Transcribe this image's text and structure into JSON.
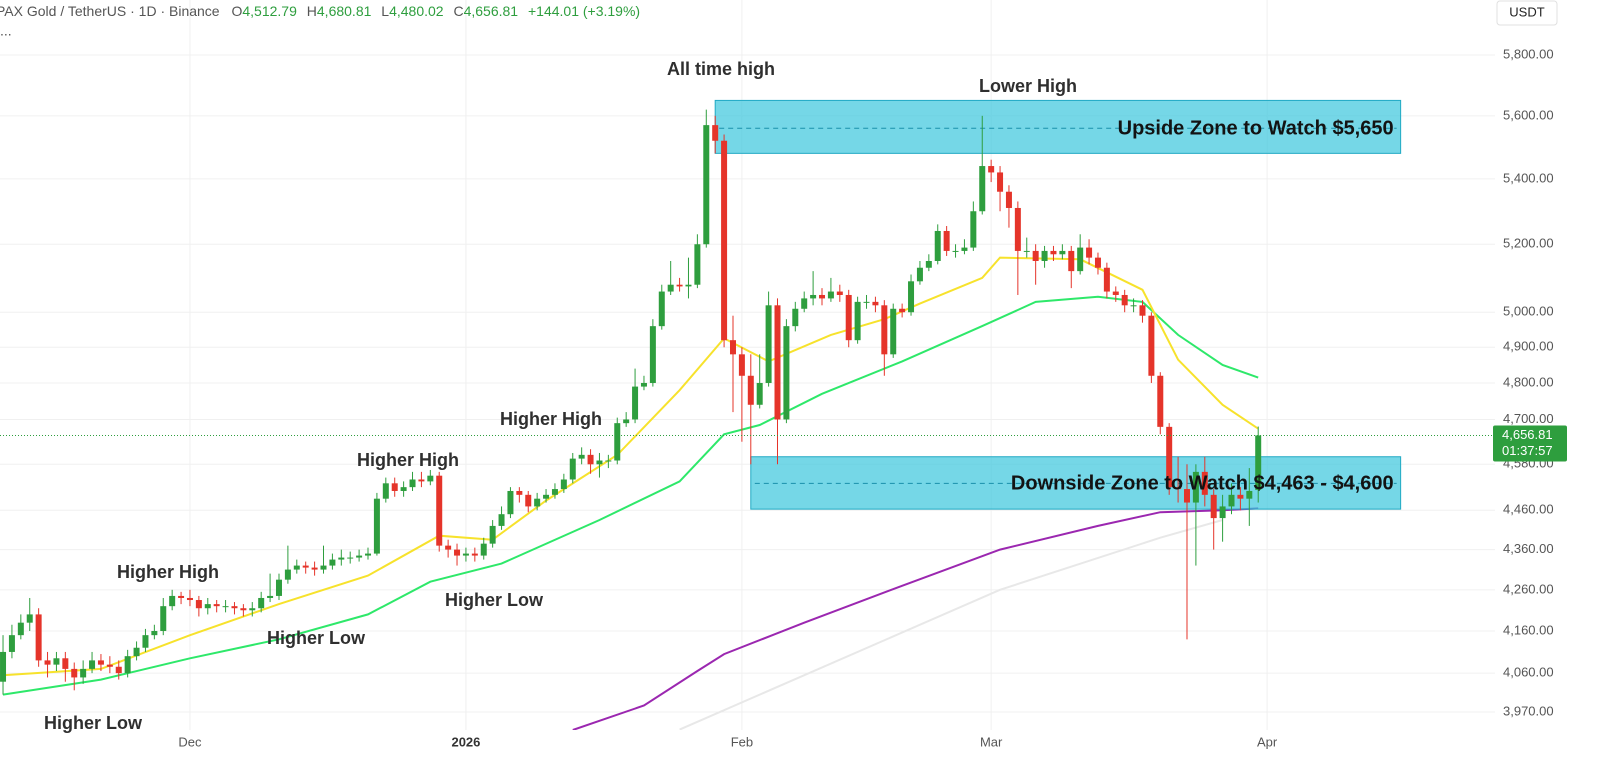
{
  "chart_data": {
    "type": "candlestick",
    "header": {
      "symbol": "PAX Gold / TetherUS · 1D · Binance",
      "o": "O",
      "open": "4,512.79",
      "h": "H",
      "high": "4,680.81",
      "l": "L",
      "low": "4,480.02",
      "c": "C",
      "close": "4,656.81",
      "change": "+144.01 (+3.19%)",
      "more": "..."
    },
    "price_scale": {
      "currency": "USDT",
      "last_price": "4,656.81",
      "countdown": "01:37:57"
    },
    "log_scale": true,
    "grid": true,
    "up_color": "#2e9e3e",
    "down_color": "#e5342a",
    "xlim": [
      -0.34,
      167.6
    ],
    "xticks": [
      {
        "value": 21,
        "label": "Dec"
      },
      {
        "value": 52,
        "label": "2026"
      },
      {
        "value": 83,
        "label": "Feb"
      },
      {
        "value": 111,
        "label": "Mar"
      },
      {
        "value": 142,
        "label": "Apr"
      }
    ],
    "ylim": [
      3929,
      5987
    ],
    "yticks": [
      {
        "value": 5800,
        "label": "5,800.00"
      },
      {
        "value": 5600,
        "label": "5,600.00"
      },
      {
        "value": 5400,
        "label": "5,400.00"
      },
      {
        "value": 5200,
        "label": "5,200.00"
      },
      {
        "value": 5000,
        "label": "5,000.00"
      },
      {
        "value": 4900,
        "label": "4,900.00"
      },
      {
        "value": 4800,
        "label": "4,800.00"
      },
      {
        "value": 4700,
        "label": "4,700.00"
      },
      {
        "value": 4580,
        "label": "4,580.00"
      },
      {
        "value": 4460,
        "label": "4,460.00"
      },
      {
        "value": 4360,
        "label": "4,360.00"
      },
      {
        "value": 4260,
        "label": "4,260.00"
      },
      {
        "value": 4160,
        "label": "4,160.00"
      },
      {
        "value": 4060,
        "label": "4,060.00"
      },
      {
        "value": 3970,
        "label": "3,970.00"
      }
    ],
    "open": [
      4040,
      4110,
      4150,
      4180,
      4200,
      4090,
      4080,
      4095,
      4070,
      4050,
      4070,
      4090,
      4080,
      4075,
      4060,
      4100,
      4120,
      4150,
      4160,
      4220,
      4245,
      4240,
      4235,
      4215,
      4225,
      4220,
      4220,
      4215,
      4210,
      4215,
      4240,
      4245,
      4285,
      4310,
      4320,
      4315,
      4310,
      4320,
      4335,
      4340,
      4340,
      4345,
      4350,
      4490,
      4530,
      4510,
      4520,
      4540,
      4535,
      4550,
      4370,
      4360,
      4345,
      4350,
      4345,
      4375,
      4420,
      4450,
      4510,
      4500,
      4470,
      4490,
      4500,
      4515,
      4540,
      4595,
      4605,
      4580,
      4590,
      4590,
      4690,
      4700,
      4790,
      4800,
      4960,
      5060,
      5080,
      5075,
      5080,
      5200,
      5570,
      5520,
      4920,
      4880,
      4820,
      4740,
      4800,
      5020,
      4700,
      4960,
      5010,
      5040,
      5050,
      5040,
      5060,
      5050,
      4920,
      5030,
      5030,
      5020,
      4880,
      5010,
      5000,
      5090,
      5130,
      5150,
      5240,
      5180,
      5180,
      5190,
      5300,
      5440,
      5420,
      5360,
      5310,
      5180,
      5180,
      5150,
      5180,
      5170,
      5180,
      5120,
      5190,
      5160,
      5130,
      5060,
      5050,
      5020,
      5020,
      4990,
      4820,
      4680,
      4520,
      4515,
      4480,
      4560,
      4500,
      4440,
      4470,
      4500,
      4490,
      4512.79
    ],
    "high": [
      4150,
      4175,
      4200,
      4240,
      4215,
      4110,
      4110,
      4110,
      4085,
      4090,
      4110,
      4105,
      4100,
      4090,
      4115,
      4135,
      4165,
      4175,
      4240,
      4260,
      4255,
      4260,
      4245,
      4240,
      4235,
      4235,
      4230,
      4225,
      4230,
      4255,
      4300,
      4300,
      4370,
      4335,
      4330,
      4330,
      4370,
      4350,
      4360,
      4355,
      4360,
      4365,
      4505,
      4545,
      4545,
      4535,
      4560,
      4560,
      4565,
      4560,
      4385,
      4375,
      4365,
      4365,
      4390,
      4435,
      4470,
      4520,
      4520,
      4510,
      4505,
      4515,
      4530,
      4555,
      4610,
      4625,
      4620,
      4610,
      4605,
      4705,
      4720,
      4840,
      4820,
      4980,
      5080,
      5150,
      5100,
      5160,
      5230,
      5620,
      5600,
      5540,
      4990,
      4900,
      4880,
      4880,
      5060,
      5040,
      4980,
      5030,
      5060,
      5120,
      5070,
      5100,
      5080,
      5065,
      5045,
      5050,
      5045,
      5035,
      5025,
      5025,
      5110,
      5150,
      5170,
      5260,
      5255,
      5200,
      5215,
      5330,
      5600,
      5460,
      5440,
      5380,
      5330,
      5220,
      5200,
      5195,
      5195,
      5200,
      5195,
      5230,
      5215,
      5175,
      5145,
      5075,
      5065,
      5040,
      5035,
      5000,
      4830,
      4690,
      4600,
      4580,
      4580,
      4600,
      4515,
      4500,
      4530,
      4520,
      4570,
      4680.81
    ],
    "low": [
      4010,
      4095,
      4140,
      4160,
      4075,
      4050,
      4065,
      4040,
      4020,
      4035,
      4060,
      4065,
      4060,
      4045,
      4050,
      4090,
      4110,
      4140,
      4150,
      4210,
      4225,
      4220,
      4195,
      4200,
      4205,
      4205,
      4200,
      4195,
      4195,
      4205,
      4230,
      4235,
      4275,
      4300,
      4300,
      4295,
      4300,
      4310,
      4320,
      4325,
      4330,
      4335,
      4345,
      4480,
      4495,
      4495,
      4510,
      4520,
      4525,
      4355,
      4340,
      4320,
      4330,
      4330,
      4335,
      4365,
      4410,
      4440,
      4480,
      4455,
      4460,
      4480,
      4490,
      4505,
      4530,
      4580,
      4555,
      4545,
      4570,
      4580,
      4680,
      4690,
      4780,
      4790,
      4950,
      5050,
      5060,
      5040,
      5070,
      5190,
      5480,
      4900,
      4720,
      4640,
      4580,
      4730,
      4790,
      4580,
      4690,
      4945,
      5000,
      5020,
      5020,
      5030,
      5030,
      4900,
      4910,
      5010,
      5000,
      4820,
      4870,
      4985,
      4990,
      5080,
      5120,
      5140,
      5165,
      5160,
      5170,
      5180,
      5290,
      5390,
      5300,
      5250,
      5050,
      5160,
      5080,
      5130,
      5150,
      5155,
      5070,
      5110,
      5140,
      5110,
      5040,
      5030,
      5000,
      5000,
      4970,
      4800,
      4660,
      4500,
      4480,
      4140,
      4320,
      4470,
      4360,
      4380,
      4450,
      4460,
      4420,
      4480.02
    ],
    "close": [
      4110,
      4150,
      4180,
      4200,
      4090,
      4080,
      4095,
      4070,
      4050,
      4070,
      4090,
      4080,
      4075,
      4060,
      4100,
      4120,
      4150,
      4160,
      4220,
      4245,
      4240,
      4235,
      4215,
      4225,
      4220,
      4220,
      4215,
      4210,
      4215,
      4240,
      4245,
      4285,
      4310,
      4320,
      4315,
      4310,
      4320,
      4335,
      4340,
      4340,
      4345,
      4350,
      4490,
      4530,
      4510,
      4520,
      4540,
      4535,
      4550,
      4370,
      4360,
      4345,
      4350,
      4345,
      4375,
      4420,
      4450,
      4510,
      4500,
      4470,
      4490,
      4500,
      4515,
      4540,
      4595,
      4605,
      4580,
      4590,
      4590,
      4690,
      4700,
      4790,
      4800,
      4960,
      5060,
      5080,
      5075,
      5080,
      5200,
      5570,
      5520,
      4920,
      4880,
      4820,
      4740,
      4800,
      5020,
      4700,
      4960,
      5010,
      5040,
      5050,
      5040,
      5060,
      5050,
      4920,
      5030,
      5030,
      5020,
      4880,
      5010,
      5000,
      5090,
      5130,
      5150,
      5240,
      5180,
      5180,
      5190,
      5300,
      5440,
      5420,
      5360,
      5310,
      5180,
      5180,
      5150,
      5180,
      5170,
      5180,
      5120,
      5190,
      5160,
      5130,
      5060,
      5050,
      5020,
      5020,
      4990,
      4820,
      4680,
      4520,
      4515,
      4480,
      4560,
      4500,
      4440,
      4470,
      4500,
      4490,
      4510,
      4656.81
    ],
    "lines": [
      {
        "color": "#e8e8e8",
        "x": [
          76,
          112,
          130,
          137
        ],
        "values": [
          3930,
          4260,
          4390,
          4435
        ]
      },
      {
        "color": "#9b27b0",
        "x": [
          64,
          72,
          78,
          81,
          90,
          101,
          112,
          123,
          130,
          137,
          141
        ],
        "values": [
          3929,
          3985,
          4065,
          4105,
          4180,
          4270,
          4360,
          4420,
          4455,
          4460,
          4465
        ]
      },
      {
        "color": "#2ee86a",
        "x": [
          0,
          11,
          21,
          31,
          41,
          48,
          56,
          67,
          76,
          81,
          85,
          92,
          101,
          110,
          116,
          123,
          128,
          132,
          137,
          141
        ],
        "values": [
          4010,
          4045,
          4095,
          4140,
          4200,
          4280,
          4325,
          4435,
          4535,
          4660,
          4685,
          4770,
          4860,
          4960,
          5030,
          5045,
          5030,
          4935,
          4850,
          4815
        ]
      },
      {
        "color": "#f7e22c",
        "x": [
          0,
          11,
          21,
          31,
          41,
          49,
          55,
          61,
          69,
          76,
          81,
          86,
          93,
          99,
          103,
          110,
          112,
          121,
          128,
          132,
          137,
          141
        ],
        "values": [
          4055,
          4070,
          4150,
          4225,
          4295,
          4395,
          4385,
          4485,
          4605,
          4780,
          4925,
          4860,
          4935,
          4980,
          5025,
          5100,
          5160,
          5155,
          5065,
          4865,
          4740,
          4675
        ]
      }
    ],
    "zones": [
      {
        "label": "Upside Zone to Watch $5,650",
        "top": 5650,
        "bottom": 5480,
        "mid": 5560,
        "start": 80,
        "end": 157
      },
      {
        "label": "Downside Zone to Watch $4,463 - $4,600",
        "top": 4600,
        "bottom": 4463,
        "mid": 4530,
        "start": 84,
        "end": 157
      }
    ],
    "annotations": [
      "All time high",
      "Lower High",
      "Higher High",
      "Higher High",
      "Higher High",
      "Higher Low",
      "Higher Low",
      "Higher Low"
    ]
  }
}
